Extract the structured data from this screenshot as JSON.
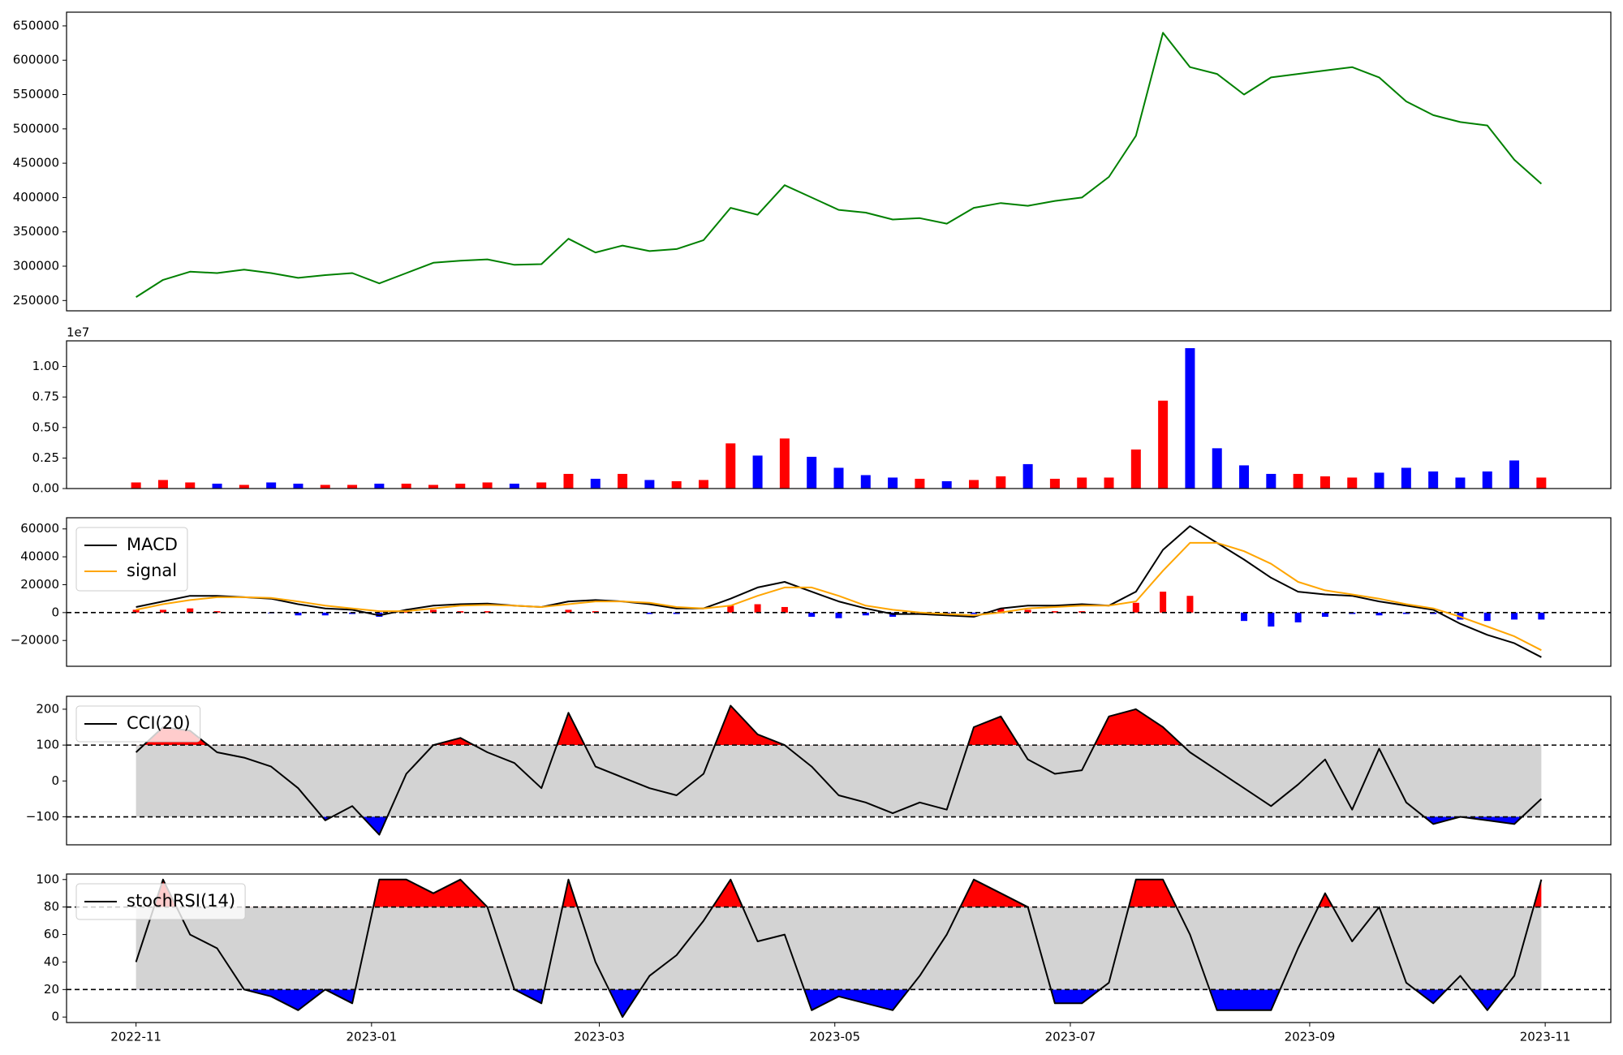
{
  "chart_data": [
    {
      "type": "line",
      "x": [
        "2022-11-01",
        "2022-11-08",
        "2022-11-15",
        "2022-11-22",
        "2022-11-29",
        "2022-12-06",
        "2022-12-13",
        "2022-12-20",
        "2022-12-27",
        "2023-01-03",
        "2023-01-10",
        "2023-01-17",
        "2023-01-24",
        "2023-01-31",
        "2023-02-07",
        "2023-02-14",
        "2023-02-21",
        "2023-02-28",
        "2023-03-07",
        "2023-03-14",
        "2023-03-21",
        "2023-03-28",
        "2023-04-04",
        "2023-04-11",
        "2023-04-18",
        "2023-04-25",
        "2023-05-02",
        "2023-05-09",
        "2023-05-16",
        "2023-05-23",
        "2023-05-30",
        "2023-06-06",
        "2023-06-13",
        "2023-06-20",
        "2023-06-27",
        "2023-07-04",
        "2023-07-11",
        "2023-07-18",
        "2023-07-25",
        "2023-08-01",
        "2023-08-08",
        "2023-08-15",
        "2023-08-22",
        "2023-08-29",
        "2023-09-05",
        "2023-09-12",
        "2023-09-19",
        "2023-09-26",
        "2023-10-03",
        "2023-10-10",
        "2023-10-17",
        "2023-10-24",
        "2023-10-31"
      ],
      "series": [
        {
          "color": "#008000",
          "values": [
            255000,
            280000,
            292000,
            290000,
            295000,
            290000,
            283000,
            287000,
            290000,
            275000,
            290000,
            305000,
            308000,
            310000,
            302000,
            303000,
            340000,
            320000,
            330000,
            322000,
            325000,
            338000,
            385000,
            375000,
            418000,
            400000,
            382000,
            378000,
            368000,
            370000,
            362000,
            385000,
            392000,
            388000,
            395000,
            400000,
            430000,
            490000,
            640000,
            590000,
            580000,
            550000,
            575000,
            580000,
            585000,
            590000,
            575000,
            540000,
            520000,
            510000,
            505000,
            455000,
            420000
          ]
        }
      ],
      "xlim": [
        "2022-10-14",
        "2023-11-18"
      ],
      "ylim": [
        235000,
        670000
      ],
      "yticks": [
        250000,
        300000,
        350000,
        400000,
        450000,
        500000,
        550000,
        600000,
        650000
      ]
    },
    {
      "type": "bar",
      "x": [
        "2022-11-01",
        "2022-11-08",
        "2022-11-15",
        "2022-11-22",
        "2022-11-29",
        "2022-12-06",
        "2022-12-13",
        "2022-12-20",
        "2022-12-27",
        "2023-01-03",
        "2023-01-10",
        "2023-01-17",
        "2023-01-24",
        "2023-01-31",
        "2023-02-07",
        "2023-02-14",
        "2023-02-21",
        "2023-02-28",
        "2023-03-07",
        "2023-03-14",
        "2023-03-21",
        "2023-03-28",
        "2023-04-04",
        "2023-04-11",
        "2023-04-18",
        "2023-04-25",
        "2023-05-02",
        "2023-05-09",
        "2023-05-16",
        "2023-05-23",
        "2023-05-30",
        "2023-06-06",
        "2023-06-13",
        "2023-06-20",
        "2023-06-27",
        "2023-07-04",
        "2023-07-11",
        "2023-07-18",
        "2023-07-25",
        "2023-08-01",
        "2023-08-08",
        "2023-08-15",
        "2023-08-22",
        "2023-08-29",
        "2023-09-05",
        "2023-09-12",
        "2023-09-19",
        "2023-09-26",
        "2023-10-03",
        "2023-10-10",
        "2023-10-17",
        "2023-10-24",
        "2023-10-31"
      ],
      "values": [
        500000,
        700000,
        500000,
        400000,
        300000,
        500000,
        400000,
        300000,
        300000,
        400000,
        400000,
        300000,
        400000,
        500000,
        400000,
        500000,
        1200000,
        800000,
        1200000,
        700000,
        600000,
        700000,
        3700000,
        2700000,
        4100000,
        2600000,
        1700000,
        1100000,
        900000,
        800000,
        600000,
        700000,
        1000000,
        2000000,
        800000,
        900000,
        900000,
        3200000,
        7200000,
        11500000,
        3300000,
        1900000,
        1200000,
        1200000,
        1000000,
        900000,
        1300000,
        1700000,
        1400000,
        900000,
        1400000,
        2300000,
        900000
      ],
      "colors": [
        "red",
        "red",
        "red",
        "blue",
        "red",
        "blue",
        "blue",
        "red",
        "red",
        "blue",
        "red",
        "red",
        "red",
        "red",
        "blue",
        "red",
        "red",
        "blue",
        "red",
        "blue",
        "red",
        "red",
        "red",
        "blue",
        "red",
        "blue",
        "blue",
        "blue",
        "blue",
        "red",
        "blue",
        "red",
        "red",
        "blue",
        "red",
        "red",
        "red",
        "red",
        "red",
        "blue",
        "blue",
        "blue",
        "blue",
        "red",
        "red",
        "red",
        "blue",
        "blue",
        "blue",
        "blue",
        "blue",
        "blue",
        "red"
      ],
      "xlim": [
        "2022-10-14",
        "2023-11-18"
      ],
      "ylim": [
        0,
        12100000
      ],
      "offset_label": "1e7",
      "yticks": [
        {
          "value": 0,
          "label": "0.00"
        },
        {
          "value": 2500000,
          "label": "0.25"
        },
        {
          "value": 5000000,
          "label": "0.50"
        },
        {
          "value": 7500000,
          "label": "0.75"
        },
        {
          "value": 10000000,
          "label": "1.00"
        }
      ]
    },
    {
      "type": "macd",
      "x": [
        "2022-11-01",
        "2022-11-08",
        "2022-11-15",
        "2022-11-22",
        "2022-11-29",
        "2022-12-06",
        "2022-12-13",
        "2022-12-20",
        "2022-12-27",
        "2023-01-03",
        "2023-01-10",
        "2023-01-17",
        "2023-01-24",
        "2023-01-31",
        "2023-02-07",
        "2023-02-14",
        "2023-02-21",
        "2023-02-28",
        "2023-03-07",
        "2023-03-14",
        "2023-03-21",
        "2023-03-28",
        "2023-04-04",
        "2023-04-11",
        "2023-04-18",
        "2023-04-25",
        "2023-05-02",
        "2023-05-09",
        "2023-05-16",
        "2023-05-23",
        "2023-05-30",
        "2023-06-06",
        "2023-06-13",
        "2023-06-20",
        "2023-06-27",
        "2023-07-04",
        "2023-07-11",
        "2023-07-18",
        "2023-07-25",
        "2023-08-01",
        "2023-08-08",
        "2023-08-15",
        "2023-08-22",
        "2023-08-29",
        "2023-09-05",
        "2023-09-12",
        "2023-09-19",
        "2023-09-26",
        "2023-10-03",
        "2023-10-10",
        "2023-10-17",
        "2023-10-24",
        "2023-10-31"
      ],
      "series": [
        {
          "name": "MACD",
          "color": "#000000",
          "values": [
            4000,
            8000,
            12000,
            12000,
            11000,
            10000,
            6000,
            3000,
            2000,
            -2000,
            2000,
            5000,
            6000,
            6500,
            5000,
            4000,
            8000,
            9000,
            8000,
            6000,
            3000,
            3000,
            10000,
            18000,
            22000,
            15000,
            8000,
            3000,
            -1000,
            -1000,
            -2000,
            -3000,
            3000,
            5000,
            5000,
            6000,
            5000,
            15000,
            45000,
            62000,
            50000,
            38000,
            25000,
            15000,
            13000,
            12000,
            8000,
            5000,
            2000,
            -8000,
            -16000,
            -22000,
            -32000
          ]
        },
        {
          "name": "signal",
          "color": "#ffa500",
          "values": [
            2000,
            6000,
            9000,
            11000,
            11000,
            10500,
            8000,
            5000,
            3000,
            1000,
            1000,
            3000,
            5000,
            5500,
            5000,
            4000,
            6000,
            8000,
            8000,
            7000,
            4000,
            3000,
            5000,
            12000,
            18000,
            18000,
            12000,
            5000,
            2000,
            0,
            -1000,
            -2000,
            0,
            3000,
            4000,
            5000,
            5000,
            8000,
            30000,
            50000,
            50000,
            44000,
            35000,
            22000,
            16000,
            13000,
            10000,
            6000,
            3000,
            -3000,
            -10000,
            -17000,
            -27000
          ]
        }
      ],
      "histogram": {
        "color_up": "red",
        "color_down": "blue",
        "values": [
          2000,
          2000,
          3000,
          1000,
          0,
          -500,
          -2000,
          -2000,
          -1000,
          -3000,
          1000,
          2000,
          1000,
          1000,
          0,
          0,
          2000,
          1000,
          0,
          -1000,
          -1000,
          0,
          5000,
          6000,
          4000,
          -3000,
          -4000,
          -2000,
          -3000,
          -1000,
          -1000,
          -1000,
          3000,
          2000,
          1000,
          1000,
          0,
          7000,
          15000,
          12000,
          0,
          -6000,
          -10000,
          -7000,
          -3000,
          -1000,
          -2000,
          -1000,
          -1000,
          -5000,
          -6000,
          -5000,
          -5000
        ]
      },
      "hlines": [
        0
      ],
      "legend": "upper left",
      "xlim": [
        "2022-10-14",
        "2023-11-18"
      ],
      "ylim": [
        -38500,
        68000
      ],
      "yticks": [
        {
          "value": -20000,
          "label": "−20000"
        },
        0,
        20000,
        40000,
        60000
      ]
    },
    {
      "type": "oscillator",
      "x": [
        "2022-11-01",
        "2022-11-08",
        "2022-11-15",
        "2022-11-22",
        "2022-11-29",
        "2022-12-06",
        "2022-12-13",
        "2022-12-20",
        "2022-12-27",
        "2023-01-03",
        "2023-01-10",
        "2023-01-17",
        "2023-01-24",
        "2023-01-31",
        "2023-02-07",
        "2023-02-14",
        "2023-02-21",
        "2023-02-28",
        "2023-03-07",
        "2023-03-14",
        "2023-03-21",
        "2023-03-28",
        "2023-04-04",
        "2023-04-11",
        "2023-04-18",
        "2023-04-25",
        "2023-05-02",
        "2023-05-09",
        "2023-05-16",
        "2023-05-23",
        "2023-05-30",
        "2023-06-06",
        "2023-06-13",
        "2023-06-20",
        "2023-06-27",
        "2023-07-04",
        "2023-07-11",
        "2023-07-18",
        "2023-07-25",
        "2023-08-01",
        "2023-08-08",
        "2023-08-15",
        "2023-08-22",
        "2023-08-29",
        "2023-09-05",
        "2023-09-12",
        "2023-09-19",
        "2023-09-26",
        "2023-10-03",
        "2023-10-10",
        "2023-10-17",
        "2023-10-24",
        "2023-10-31"
      ],
      "series": [
        {
          "name": "CCI(20)",
          "color": "#000000",
          "values": [
            80,
            150,
            140,
            80,
            65,
            40,
            -20,
            -110,
            -70,
            -150,
            20,
            100,
            120,
            80,
            50,
            -20,
            190,
            40,
            10,
            -20,
            -40,
            20,
            210,
            130,
            100,
            40,
            -40,
            -60,
            -90,
            -60,
            -80,
            150,
            180,
            60,
            20,
            30,
            180,
            200,
            150,
            80,
            30,
            -20,
            -70,
            -10,
            60,
            -80,
            90,
            -60,
            -120,
            -100,
            -110,
            -120,
            -50
          ]
        }
      ],
      "bands": [
        -100,
        100
      ],
      "band_color": "#d3d3d3",
      "above_color": "red",
      "below_color": "blue",
      "legend": "upper left",
      "xlim": [
        "2022-10-14",
        "2023-11-18"
      ],
      "ylim": [
        -178,
        236
      ],
      "yticks": [
        {
          "value": -100,
          "label": "−100"
        },
        0,
        100,
        200
      ]
    },
    {
      "type": "oscillator",
      "x": [
        "2022-11-01",
        "2022-11-08",
        "2022-11-15",
        "2022-11-22",
        "2022-11-29",
        "2022-12-06",
        "2022-12-13",
        "2022-12-20",
        "2022-12-27",
        "2023-01-03",
        "2023-01-10",
        "2023-01-17",
        "2023-01-24",
        "2023-01-31",
        "2023-02-07",
        "2023-02-14",
        "2023-02-21",
        "2023-02-28",
        "2023-03-07",
        "2023-03-14",
        "2023-03-21",
        "2023-03-28",
        "2023-04-04",
        "2023-04-11",
        "2023-04-18",
        "2023-04-25",
        "2023-05-02",
        "2023-05-09",
        "2023-05-16",
        "2023-05-23",
        "2023-05-30",
        "2023-06-06",
        "2023-06-13",
        "2023-06-20",
        "2023-06-27",
        "2023-07-04",
        "2023-07-11",
        "2023-07-18",
        "2023-07-25",
        "2023-08-01",
        "2023-08-08",
        "2023-08-15",
        "2023-08-22",
        "2023-08-29",
        "2023-09-05",
        "2023-09-12",
        "2023-09-19",
        "2023-09-26",
        "2023-10-03",
        "2023-10-10",
        "2023-10-17",
        "2023-10-24",
        "2023-10-31"
      ],
      "series": [
        {
          "name": "stochRSI(14)",
          "color": "#000000",
          "values": [
            40,
            100,
            60,
            50,
            20,
            15,
            5,
            20,
            10,
            100,
            100,
            90,
            100,
            80,
            20,
            10,
            100,
            40,
            0,
            30,
            45,
            70,
            100,
            55,
            60,
            5,
            15,
            10,
            5,
            30,
            60,
            100,
            90,
            80,
            10,
            10,
            25,
            100,
            100,
            60,
            5,
            5,
            5,
            50,
            90,
            55,
            80,
            25,
            10,
            30,
            5,
            30,
            100
          ]
        }
      ],
      "bands": [
        20,
        80
      ],
      "band_color": "#d3d3d3",
      "above_color": "red",
      "below_color": "blue",
      "legend": "upper left",
      "xlim": [
        "2022-10-14",
        "2023-11-18"
      ],
      "ylim": [
        -4,
        104
      ],
      "yticks": [
        0,
        20,
        40,
        60,
        80,
        100
      ],
      "xticks": [
        "2022-11",
        "2023-01",
        "2023-03",
        "2023-05",
        "2023-07",
        "2023-09",
        "2023-11"
      ]
    }
  ]
}
